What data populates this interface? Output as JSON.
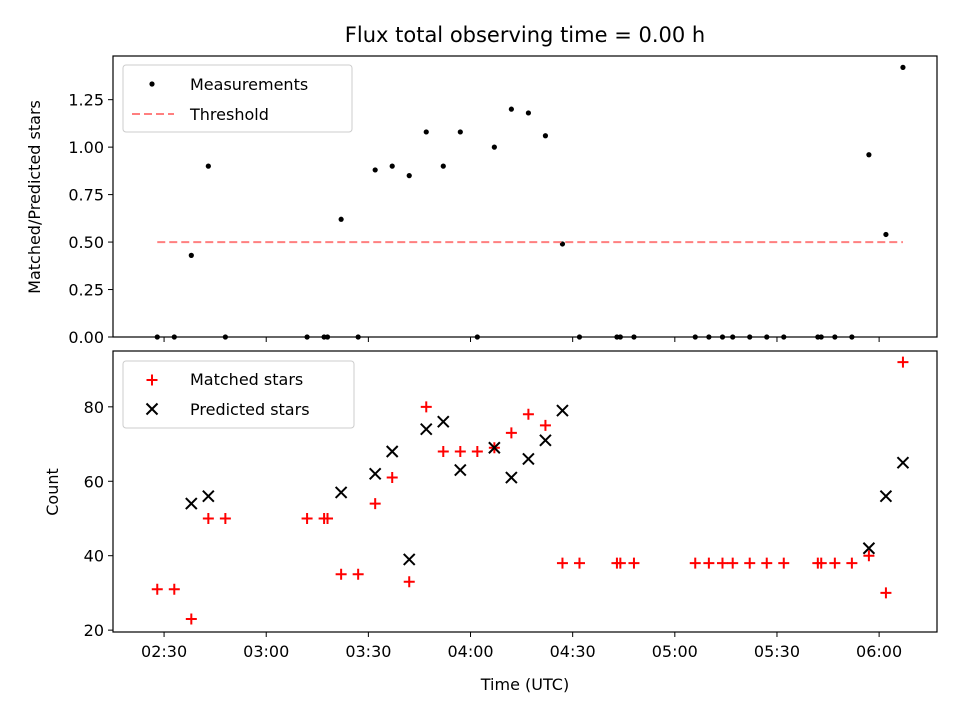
{
  "chart_data": [
    {
      "type": "scatter",
      "title": "Flux total observing time = 0.00 h",
      "xlabel": "",
      "ylabel": "Matched/Predicted stars",
      "xlim_minutes": [
        135,
        377
      ],
      "ylim": [
        0,
        1.48
      ],
      "yticks": [
        "0.00",
        "0.25",
        "0.50",
        "0.75",
        "1.00",
        "1.25"
      ],
      "ytick_values": [
        0,
        0.25,
        0.5,
        0.75,
        1.0,
        1.25
      ],
      "legend_position": "top-left",
      "series": [
        {
          "name": "Measurements",
          "marker": "dot",
          "color": "#000000",
          "points": [
            [
              "02:28",
              0.0
            ],
            [
              "02:33",
              0.0
            ],
            [
              "02:38",
              0.43
            ],
            [
              "02:43",
              0.9
            ],
            [
              "02:48",
              0.0
            ],
            [
              "03:12",
              0.0
            ],
            [
              "03:17",
              0.0
            ],
            [
              "03:18",
              0.0
            ],
            [
              "03:22",
              0.62
            ],
            [
              "03:27",
              0.0
            ],
            [
              "03:32",
              0.88
            ],
            [
              "03:37",
              0.9
            ],
            [
              "03:42",
              0.85
            ],
            [
              "03:47",
              1.08
            ],
            [
              "03:52",
              0.9
            ],
            [
              "03:57",
              1.08
            ],
            [
              "04:02",
              0.0
            ],
            [
              "04:07",
              1.0
            ],
            [
              "04:12",
              1.2
            ],
            [
              "04:17",
              1.18
            ],
            [
              "04:22",
              1.06
            ],
            [
              "04:27",
              0.49
            ],
            [
              "04:32",
              0.0
            ],
            [
              "04:43",
              0.0
            ],
            [
              "04:44",
              0.0
            ],
            [
              "04:48",
              0.0
            ],
            [
              "05:06",
              0.0
            ],
            [
              "05:10",
              0.0
            ],
            [
              "05:14",
              0.0
            ],
            [
              "05:17",
              0.0
            ],
            [
              "05:22",
              0.0
            ],
            [
              "05:27",
              0.0
            ],
            [
              "05:32",
              0.0
            ],
            [
              "05:42",
              0.0
            ],
            [
              "05:43",
              0.0
            ],
            [
              "05:47",
              0.0
            ],
            [
              "05:52",
              0.0
            ],
            [
              "05:57",
              0.96
            ],
            [
              "06:02",
              0.54
            ],
            [
              "06:07",
              1.42
            ]
          ]
        },
        {
          "name": "Threshold",
          "marker": "dashed-line",
          "color": "#ff7f7f",
          "points": [
            [
              "02:28",
              0.5
            ],
            [
              "06:07",
              0.5
            ]
          ]
        }
      ]
    },
    {
      "type": "scatter",
      "title": "",
      "xlabel": "Time (UTC)",
      "ylabel": "Count",
      "xlim_minutes": [
        135,
        377
      ],
      "ylim": [
        19.5,
        95
      ],
      "yticks": [
        "20",
        "40",
        "60",
        "80"
      ],
      "ytick_values": [
        20,
        40,
        60,
        80
      ],
      "xticks": [
        "02:30",
        "03:00",
        "03:30",
        "04:00",
        "04:30",
        "05:00",
        "05:30",
        "06:00"
      ],
      "xtick_minutes": [
        150,
        180,
        210,
        240,
        270,
        300,
        330,
        360
      ],
      "legend_position": "top-left",
      "series": [
        {
          "name": "Matched stars",
          "marker": "plus",
          "color": "#ff0000",
          "points": [
            [
              "02:28",
              31
            ],
            [
              "02:33",
              31
            ],
            [
              "02:38",
              23
            ],
            [
              "02:43",
              50
            ],
            [
              "02:48",
              50
            ],
            [
              "03:12",
              50
            ],
            [
              "03:17",
              50
            ],
            [
              "03:18",
              50
            ],
            [
              "03:22",
              35
            ],
            [
              "03:27",
              35
            ],
            [
              "03:32",
              54
            ],
            [
              "03:37",
              61
            ],
            [
              "03:42",
              33
            ],
            [
              "03:47",
              80
            ],
            [
              "03:52",
              68
            ],
            [
              "03:57",
              68
            ],
            [
              "04:02",
              68
            ],
            [
              "04:07",
              69
            ],
            [
              "04:12",
              73
            ],
            [
              "04:17",
              78
            ],
            [
              "04:22",
              75
            ],
            [
              "04:27",
              38
            ],
            [
              "04:32",
              38
            ],
            [
              "04:43",
              38
            ],
            [
              "04:44",
              38
            ],
            [
              "04:48",
              38
            ],
            [
              "05:06",
              38
            ],
            [
              "05:10",
              38
            ],
            [
              "05:14",
              38
            ],
            [
              "05:17",
              38
            ],
            [
              "05:22",
              38
            ],
            [
              "05:27",
              38
            ],
            [
              "05:32",
              38
            ],
            [
              "05:42",
              38
            ],
            [
              "05:43",
              38
            ],
            [
              "05:47",
              38
            ],
            [
              "05:52",
              38
            ],
            [
              "05:57",
              40
            ],
            [
              "06:02",
              30
            ],
            [
              "06:07",
              92
            ]
          ]
        },
        {
          "name": "Predicted stars",
          "marker": "x",
          "color": "#000000",
          "points": [
            [
              "02:38",
              54
            ],
            [
              "02:43",
              56
            ],
            [
              "03:22",
              57
            ],
            [
              "03:32",
              62
            ],
            [
              "03:37",
              68
            ],
            [
              "03:42",
              39
            ],
            [
              "03:47",
              74
            ],
            [
              "03:52",
              76
            ],
            [
              "03:57",
              63
            ],
            [
              "04:07",
              69
            ],
            [
              "04:12",
              61
            ],
            [
              "04:17",
              66
            ],
            [
              "04:22",
              71
            ],
            [
              "04:27",
              79
            ],
            [
              "05:57",
              42
            ],
            [
              "06:02",
              56
            ],
            [
              "06:07",
              65
            ]
          ]
        }
      ]
    }
  ]
}
